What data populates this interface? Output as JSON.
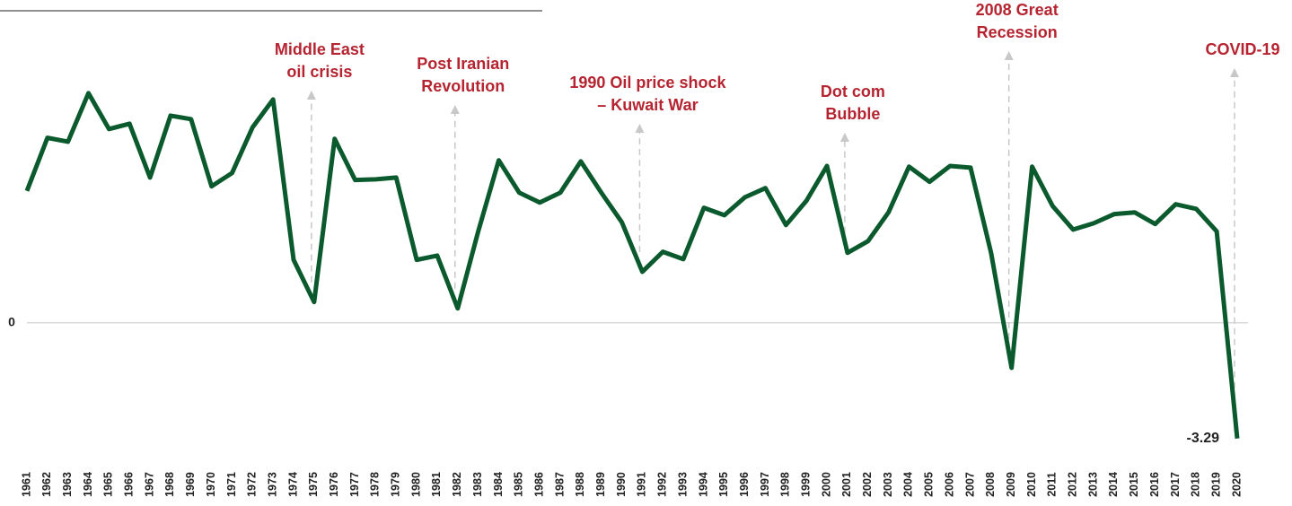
{
  "chart_data": {
    "type": "line",
    "categories": [
      "1961",
      "1962",
      "1963",
      "1964",
      "1965",
      "1966",
      "1967",
      "1968",
      "1969",
      "1970",
      "1971",
      "1972",
      "1973",
      "1974",
      "1975",
      "1976",
      "1977",
      "1978",
      "1979",
      "1980",
      "1981",
      "1982",
      "1983",
      "1984",
      "1985",
      "1986",
      "1987",
      "1988",
      "1989",
      "1990",
      "1991",
      "1992",
      "1993",
      "1994",
      "1995",
      "1996",
      "1997",
      "1998",
      "1999",
      "2000",
      "2001",
      "2002",
      "2003",
      "2004",
      "2005",
      "2006",
      "2007",
      "2008",
      "2009",
      "2010",
      "2011",
      "2012",
      "2013",
      "2014",
      "2015",
      "2016",
      "2017",
      "2018",
      "2019",
      "2020"
    ],
    "series": [
      {
        "name": null,
        "color": "#0b5a2d",
        "values": [
          3.75,
          5.26,
          5.15,
          6.53,
          5.51,
          5.66,
          4.13,
          5.89,
          5.79,
          3.88,
          4.26,
          5.56,
          6.35,
          1.79,
          0.59,
          5.23,
          4.06,
          4.08,
          4.13,
          1.79,
          1.91,
          0.41,
          2.6,
          4.62,
          3.7,
          3.42,
          3.7,
          4.59,
          3.7,
          2.86,
          1.45,
          2.02,
          1.81,
          3.27,
          3.06,
          3.57,
          3.83,
          2.78,
          3.47,
          4.46,
          1.99,
          2.32,
          3.14,
          4.44,
          4.01,
          4.46,
          4.41,
          1.99,
          -1.28,
          4.44,
          3.32,
          2.65,
          2.83,
          3.09,
          3.14,
          2.81,
          3.37,
          3.24,
          2.6,
          -3.29
        ],
        "value_labels": [
          null,
          null,
          null,
          null,
          null,
          null,
          null,
          null,
          null,
          null,
          null,
          null,
          null,
          null,
          null,
          null,
          null,
          null,
          null,
          null,
          null,
          null,
          null,
          null,
          null,
          null,
          null,
          null,
          null,
          null,
          null,
          null,
          null,
          null,
          null,
          null,
          null,
          null,
          null,
          null,
          null,
          null,
          null,
          null,
          null,
          null,
          null,
          null,
          null,
          null,
          null,
          null,
          null,
          null,
          null,
          null,
          null,
          null,
          null,
          "-3.29"
        ]
      }
    ],
    "ylim": [
      -3.5,
      9
    ],
    "yticks": [
      0
    ],
    "grid": true,
    "annotations": [
      {
        "lines": [
          "Middle East",
          "oil crisis"
        ],
        "category": "1975"
      },
      {
        "lines": [
          "Post Iranian",
          "Revolution"
        ],
        "category": "1982"
      },
      {
        "lines": [
          "1990 Oil price shock",
          "– Kuwait War"
        ],
        "category": "1991"
      },
      {
        "lines": [
          "Dot com",
          "Bubble"
        ],
        "category": "2001"
      },
      {
        "lines": [
          "2008 Great",
          "Recession"
        ],
        "category": "2009"
      },
      {
        "lines": [
          "COVID-19"
        ],
        "category": "2020"
      }
    ]
  }
}
